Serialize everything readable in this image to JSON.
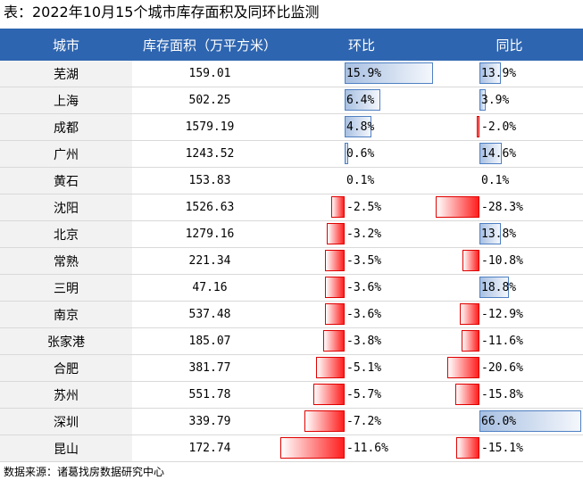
{
  "title": "表：2022年10月15个城市库存面积及同环比监测",
  "headers": {
    "city": "城市",
    "area": "库存面积（万平方米）",
    "mom": "环比",
    "yoy": "同比"
  },
  "colors": {
    "header_bg": "#2e65b0",
    "positive_bar": "#4f80c2",
    "negative_bar": "#ff1e1e"
  },
  "rows": [
    {
      "city": "芜湖",
      "area": "159.01",
      "mom": "15.9%",
      "mom_value": 15.9,
      "yoy": "13.9%",
      "yoy_value": 13.9
    },
    {
      "city": "上海",
      "area": "502.25",
      "mom": "6.4%",
      "mom_value": 6.4,
      "yoy": "3.9%",
      "yoy_value": 3.9
    },
    {
      "city": "成都",
      "area": "1579.19",
      "mom": "4.8%",
      "mom_value": 4.8,
      "yoy": "-2.0%",
      "yoy_value": -2.0
    },
    {
      "city": "广州",
      "area": "1243.52",
      "mom": "0.6%",
      "mom_value": 0.6,
      "yoy": "14.6%",
      "yoy_value": 14.6
    },
    {
      "city": "黄石",
      "area": "153.83",
      "mom": "0.1%",
      "mom_value": 0.1,
      "yoy": "0.1%",
      "yoy_value": 0.1
    },
    {
      "city": "沈阳",
      "area": "1526.63",
      "mom": "-2.5%",
      "mom_value": -2.5,
      "yoy": "-28.3%",
      "yoy_value": -28.3
    },
    {
      "city": "北京",
      "area": "1279.16",
      "mom": "-3.2%",
      "mom_value": -3.2,
      "yoy": "13.8%",
      "yoy_value": 13.8
    },
    {
      "city": "常熟",
      "area": "221.34",
      "mom": "-3.5%",
      "mom_value": -3.5,
      "yoy": "-10.8%",
      "yoy_value": -10.8
    },
    {
      "city": "三明",
      "area": "47.16",
      "mom": "-3.6%",
      "mom_value": -3.6,
      "yoy": "18.8%",
      "yoy_value": 18.8
    },
    {
      "city": "南京",
      "area": "537.48",
      "mom": "-3.6%",
      "mom_value": -3.6,
      "yoy": "-12.9%",
      "yoy_value": -12.9
    },
    {
      "city": "张家港",
      "area": "185.07",
      "mom": "-3.8%",
      "mom_value": -3.8,
      "yoy": "-11.6%",
      "yoy_value": -11.6
    },
    {
      "city": "合肥",
      "area": "381.77",
      "mom": "-5.1%",
      "mom_value": -5.1,
      "yoy": "-20.6%",
      "yoy_value": -20.6
    },
    {
      "city": "苏州",
      "area": "551.78",
      "mom": "-5.7%",
      "mom_value": -5.7,
      "yoy": "-15.8%",
      "yoy_value": -15.8
    },
    {
      "city": "深圳",
      "area": "339.79",
      "mom": "-7.2%",
      "mom_value": -7.2,
      "yoy": "66.0%",
      "yoy_value": 66.0
    },
    {
      "city": "昆山",
      "area": "172.74",
      "mom": "-11.6%",
      "mom_value": -11.6,
      "yoy": "-15.1%",
      "yoy_value": -15.1
    }
  ],
  "source": "数据来源：诸葛找房数据研究中心"
}
